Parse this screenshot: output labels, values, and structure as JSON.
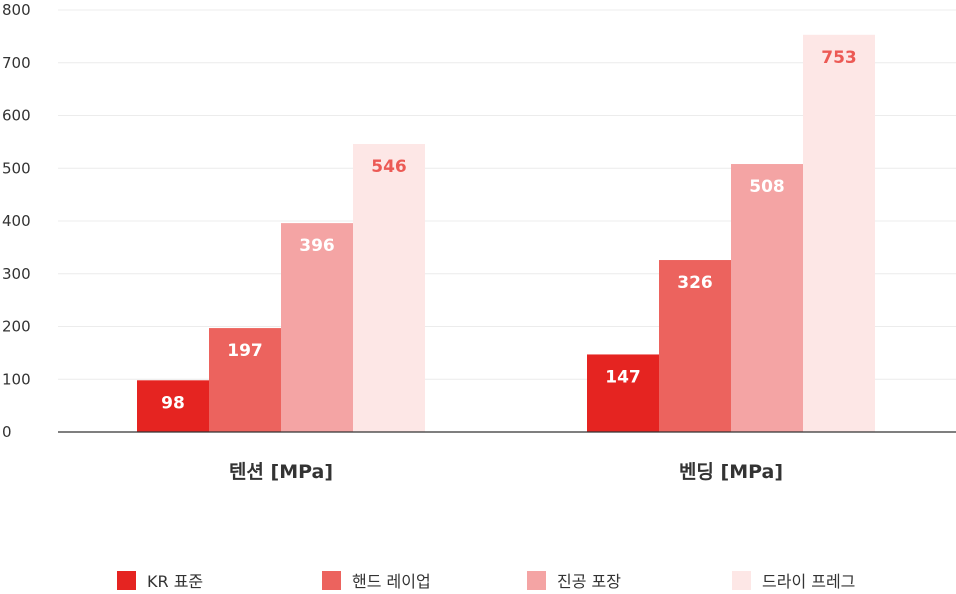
{
  "chart_data": {
    "type": "bar",
    "categories": [
      "텐션 [MPa]",
      "벤딩 [MPa]"
    ],
    "series": [
      {
        "name": "KR 표준",
        "values": [
          98,
          147
        ],
        "color": "#e52421",
        "label_color": "#ffffff"
      },
      {
        "name": "핸드 레이업",
        "values": [
          197,
          326
        ],
        "color": "#ec635e",
        "label_color": "#ffffff"
      },
      {
        "name": "진공 포장",
        "values": [
          396,
          508
        ],
        "color": "#f4a4a4",
        "label_color": "#ffffff"
      },
      {
        "name": "드라이 프레그",
        "values": [
          546,
          753
        ],
        "color": "#fde7e6",
        "label_color": "#ec5a55"
      }
    ],
    "y_ticks": [
      "0",
      "100",
      "200",
      "300",
      "400",
      "500",
      "600",
      "700",
      "800"
    ],
    "ylim": [
      0,
      800
    ],
    "grid": true,
    "legend_position": "bottom"
  }
}
